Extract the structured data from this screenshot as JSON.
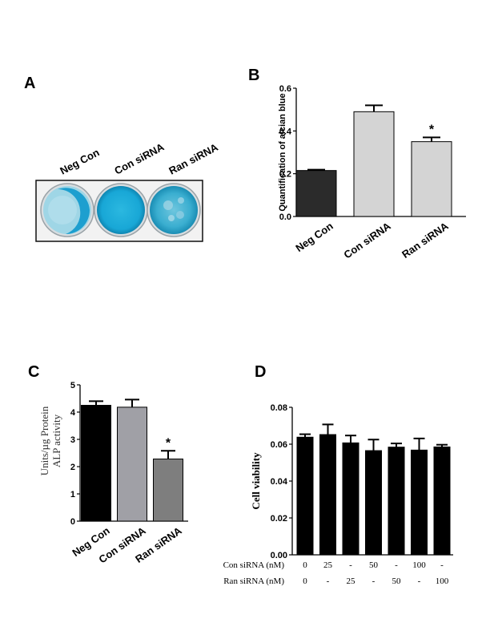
{
  "panels": {
    "A": {
      "letter": "A",
      "well_labels": [
        "Neg Con",
        "Con siRNA",
        "Ran siRNA"
      ]
    }
  },
  "chart_data": [
    {
      "id": "B",
      "letter": "B",
      "type": "bar",
      "categories": [
        "Neg Con",
        "Con siRNA",
        "Ran siRNA"
      ],
      "values": [
        0.215,
        0.49,
        0.35
      ],
      "errors": [
        0.004,
        0.03,
        0.02
      ],
      "colors": [
        "#2b2b2b",
        "#d4d4d4",
        "#d4d4d4"
      ],
      "ylabel": "Quantification of alcian blue",
      "ylim": [
        0,
        0.6
      ],
      "yticks": [
        0.0,
        0.2,
        0.4,
        0.6
      ],
      "ytick_labels": [
        "0.0",
        "0.2",
        "0.4",
        "0.6"
      ],
      "significance": [
        "",
        "",
        "*"
      ]
    },
    {
      "id": "C",
      "letter": "C",
      "type": "bar",
      "categories": [
        "Neg Con",
        "Con siRNA",
        "Ran siRNA"
      ],
      "values": [
        4.25,
        4.18,
        2.28
      ],
      "errors": [
        0.15,
        0.28,
        0.3
      ],
      "colors": [
        "#000000",
        "#a0a0a6",
        "#7e7e7e"
      ],
      "ylabel_lines": [
        "Units/µg Protein",
        "ALP activity"
      ],
      "ylim": [
        0,
        5
      ],
      "yticks": [
        0,
        1,
        2,
        3,
        4,
        5
      ],
      "ytick_labels": [
        "0",
        "1",
        "2",
        "3",
        "4",
        "5"
      ],
      "significance": [
        "",
        "",
        "*"
      ]
    },
    {
      "id": "D",
      "letter": "D",
      "type": "bar",
      "values": [
        0.0638,
        0.0652,
        0.0607,
        0.0565,
        0.0584,
        0.0568,
        0.0585
      ],
      "errors": [
        0.0016,
        0.0055,
        0.004,
        0.006,
        0.002,
        0.0063,
        0.0012
      ],
      "colors": [
        "#000000",
        "#000000",
        "#000000",
        "#000000",
        "#000000",
        "#000000",
        "#000000"
      ],
      "ylabel": "Cell viability",
      "ylim": [
        0,
        0.08
      ],
      "yticks": [
        0.0,
        0.02,
        0.04,
        0.06,
        0.08
      ],
      "ytick_labels": [
        "0.00",
        "0.02",
        "0.04",
        "0.06",
        "0.08"
      ],
      "rows": [
        {
          "label": "Con siRNA (nM)",
          "values": [
            "0",
            "25",
            "-",
            "50",
            "-",
            "100",
            "-"
          ]
        },
        {
          "label": "Ran siRNA (nM)",
          "values": [
            "0",
            "-",
            "25",
            "-",
            "50",
            "-",
            "100"
          ]
        }
      ]
    }
  ]
}
